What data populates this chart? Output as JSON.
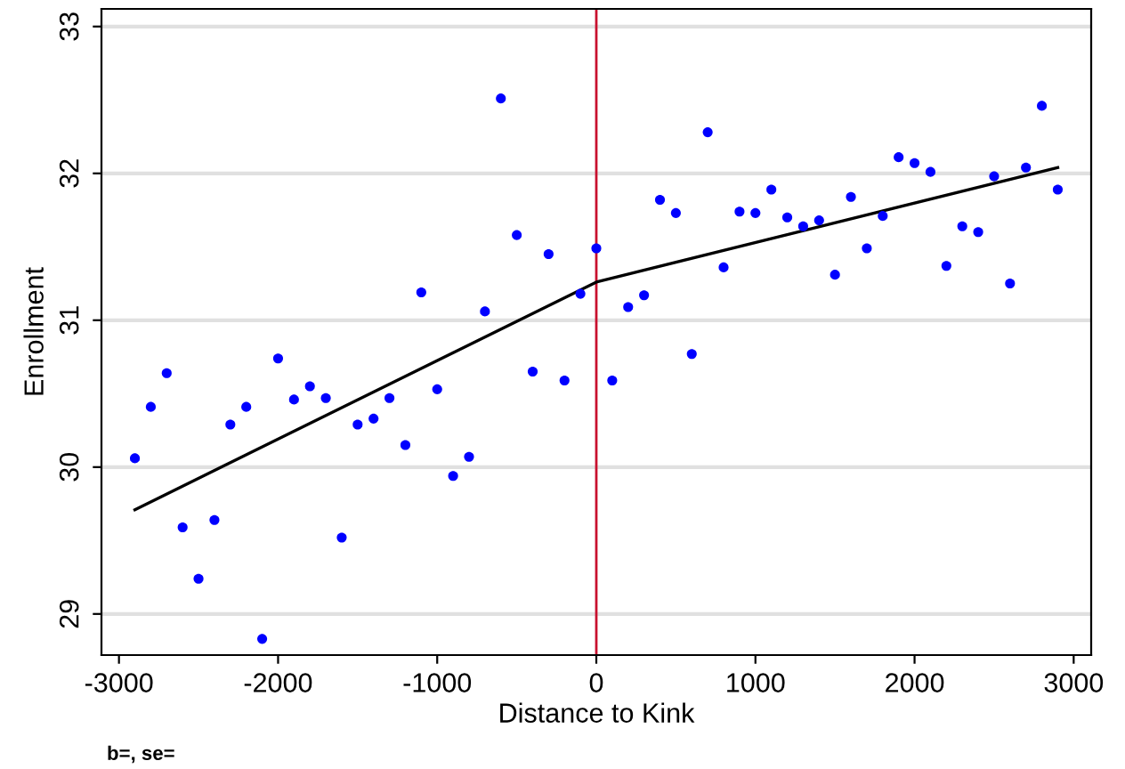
{
  "chart_data": {
    "type": "scatter",
    "xlabel": "Distance to Kink",
    "ylabel": "Enrollment",
    "xlim": [
      -3110,
      3110
    ],
    "ylim": [
      28.72,
      33.12
    ],
    "xticks": [
      -3000,
      -2000,
      -1000,
      0,
      1000,
      2000,
      3000
    ],
    "yticks": [
      29,
      30,
      31,
      32,
      33
    ],
    "grid": "y",
    "marker": "circle",
    "x": [
      -2900,
      -2800,
      -2700,
      -2600,
      -2500,
      -2400,
      -2300,
      -2200,
      -2100,
      -2000,
      -1900,
      -1800,
      -1700,
      -1600,
      -1500,
      -1400,
      -1300,
      -1200,
      -1100,
      -1000,
      -900,
      -800,
      -700,
      -600,
      -500,
      -400,
      -300,
      -200,
      -100,
      0,
      100,
      200,
      300,
      400,
      500,
      600,
      700,
      800,
      900,
      1000,
      1100,
      1200,
      1300,
      1400,
      1500,
      1600,
      1700,
      1800,
      1900,
      2000,
      2100,
      2200,
      2300,
      2400,
      2500,
      2600,
      2700,
      2800,
      2900
    ],
    "series": [
      {
        "color": "#0000ff",
        "values": [
          30.06,
          30.41,
          30.64,
          29.59,
          29.24,
          29.64,
          30.29,
          30.41,
          28.83,
          30.74,
          30.46,
          30.55,
          30.47,
          29.52,
          30.29,
          30.33,
          30.47,
          30.15,
          31.19,
          30.53,
          29.94,
          30.07,
          31.06,
          32.51,
          31.58,
          30.65,
          31.45,
          30.59,
          31.18,
          31.49,
          30.59,
          31.09,
          31.17,
          31.82,
          31.73,
          30.77,
          32.28,
          31.36,
          31.74,
          31.73,
          31.89,
          31.7,
          31.64,
          31.68,
          31.31,
          31.84,
          31.49,
          31.71,
          32.11,
          32.07,
          32.01,
          31.37,
          31.64,
          31.6,
          31.98,
          31.25,
          32.04,
          32.46,
          31.89
        ]
      },
      {
        "type": "line",
        "color": "#000000",
        "marker": "none",
        "x": [
          -2900,
          0,
          2900
        ],
        "values": [
          29.71,
          31.26,
          32.04
        ]
      }
    ],
    "ref_lines": [
      {
        "axis": "x",
        "value": 0,
        "color": "#c8102e"
      }
    ],
    "annotations": [
      "b=, se="
    ]
  }
}
